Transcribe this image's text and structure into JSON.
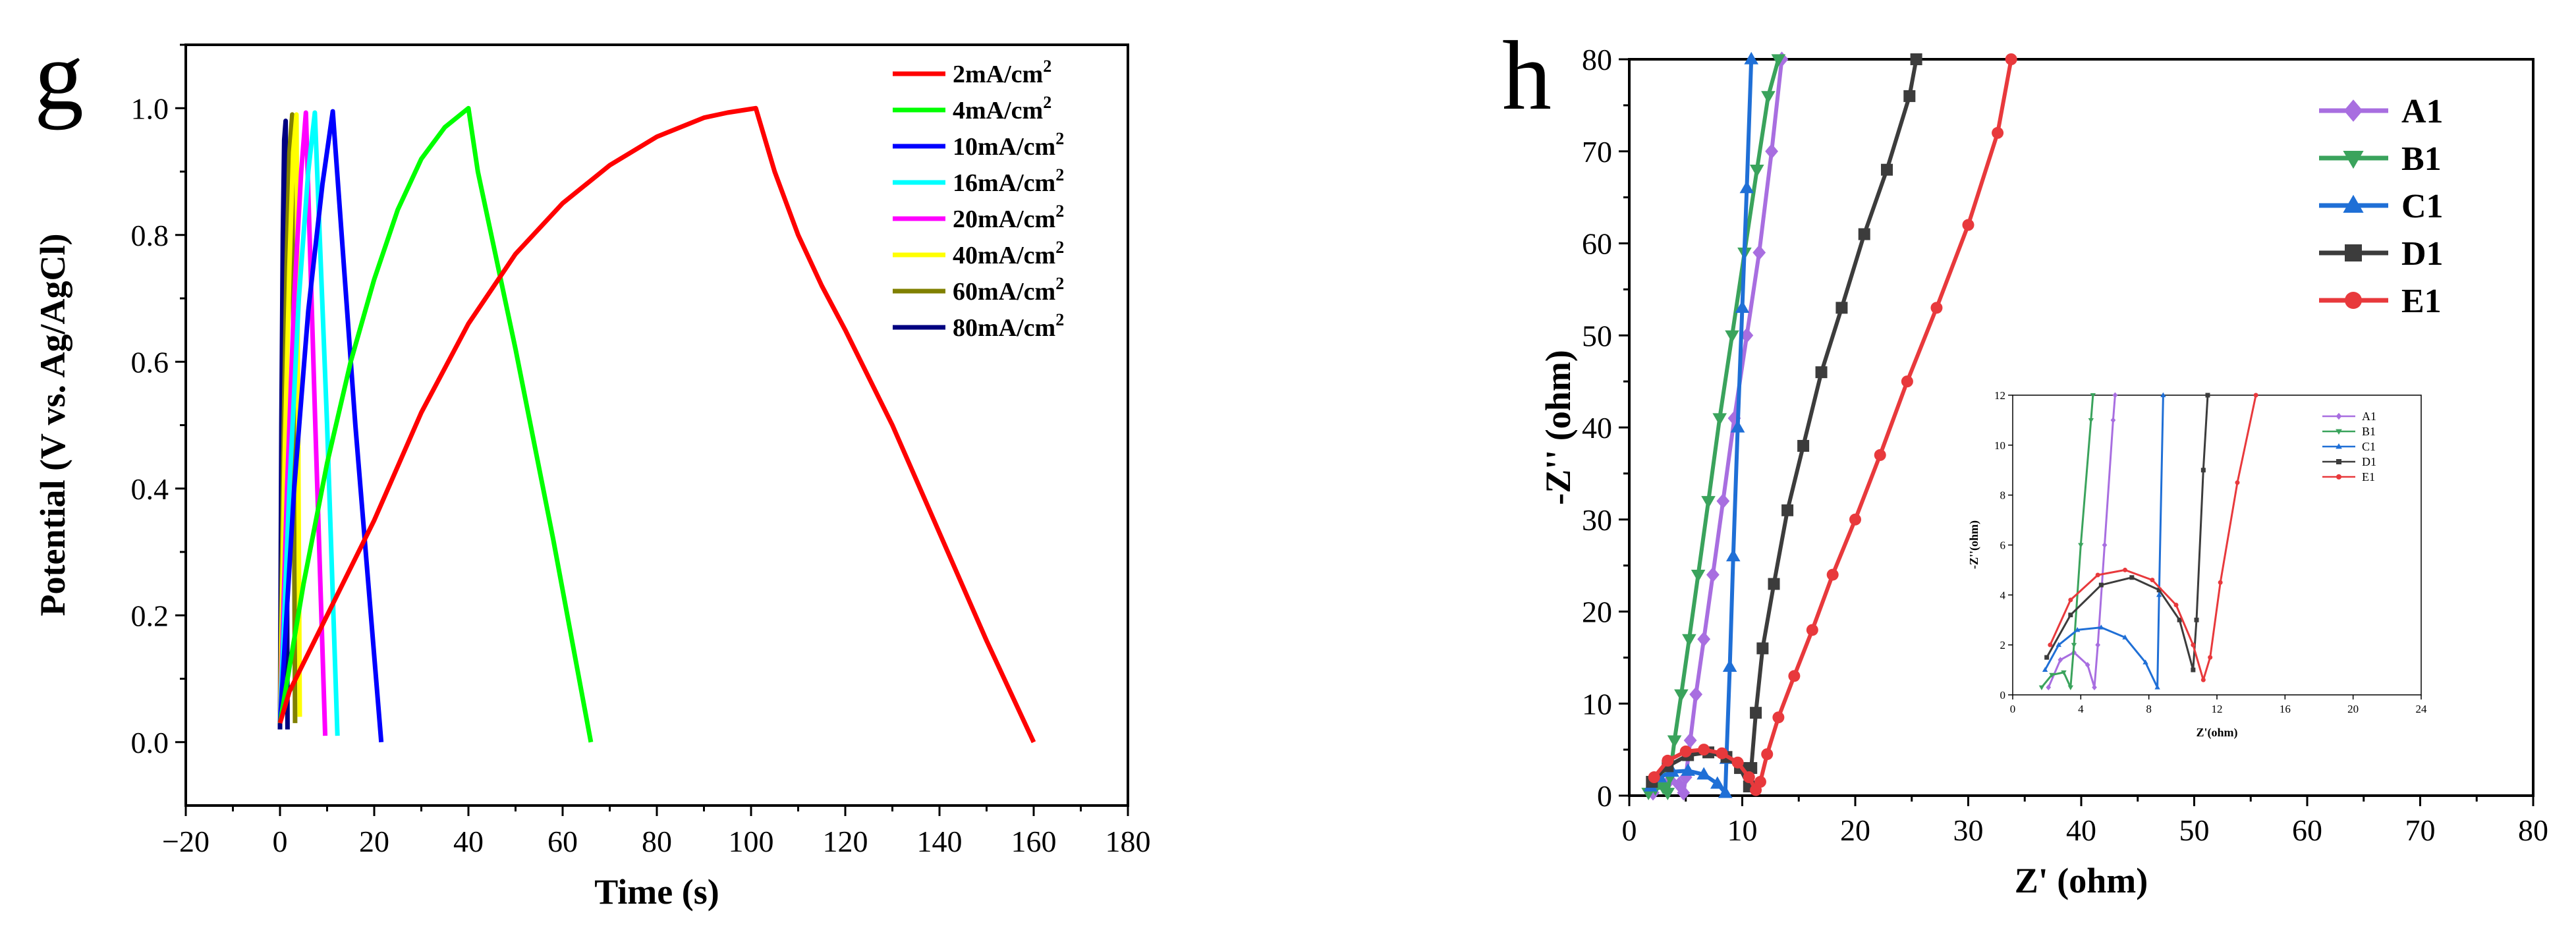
{
  "chart_data": [
    {
      "type": "line",
      "panel_label": "g",
      "xlabel": "Time (s)",
      "ylabel": "Potential (V vs. Ag/AgCl)",
      "xlim": [
        -20,
        180
      ],
      "ylim": [
        -0.1,
        1.1
      ],
      "xticks": [
        -20,
        0,
        20,
        40,
        60,
        80,
        100,
        120,
        140,
        160,
        180
      ],
      "xtick_labels": [
        "−20",
        "0",
        "20",
        "40",
        "60",
        "80",
        "100",
        "120",
        "140",
        "160",
        "180"
      ],
      "yticks": [
        0.0,
        0.2,
        0.4,
        0.6,
        0.8,
        1.0
      ],
      "ytick_labels": [
        "0.0",
        "0.2",
        "0.4",
        "0.6",
        "0.8",
        "1.0"
      ],
      "legend_position": "top-right",
      "series": [
        {
          "name": "2mA/cm",
          "sup": "2",
          "color": "#ff0000",
          "x": [
            0,
            2,
            10,
            20,
            30,
            40,
            50,
            60,
            70,
            80,
            90,
            95,
            101,
            105,
            110,
            115,
            120,
            130,
            140,
            150,
            160
          ],
          "y": [
            0.03,
            0.08,
            0.2,
            0.35,
            0.52,
            0.66,
            0.77,
            0.85,
            0.91,
            0.955,
            0.985,
            0.993,
            1.0,
            0.9,
            0.8,
            0.72,
            0.65,
            0.5,
            0.33,
            0.16,
            0.0
          ]
        },
        {
          "name": "4mA/cm",
          "sup": "2",
          "color": "#00ff00",
          "x": [
            0,
            5,
            10,
            15,
            20,
            25,
            30,
            35,
            40,
            42,
            50,
            58,
            66
          ],
          "y": [
            0.03,
            0.25,
            0.44,
            0.6,
            0.73,
            0.84,
            0.92,
            0.97,
            1.0,
            0.9,
            0.62,
            0.32,
            0.0
          ]
        },
        {
          "name": "10mA/cm",
          "sup": "2",
          "color": "#0000ff",
          "x": [
            0,
            3,
            6,
            9,
            11.2,
            16,
            21.5
          ],
          "y": [
            0.03,
            0.4,
            0.68,
            0.88,
            0.995,
            0.5,
            0.0
          ]
        },
        {
          "name": "16mA/cm",
          "sup": "2",
          "color": "#00ffff",
          "x": [
            0,
            2,
            4,
            6,
            7.4,
            10,
            12.2
          ],
          "y": [
            0.03,
            0.4,
            0.7,
            0.9,
            0.993,
            0.5,
            0.01
          ]
        },
        {
          "name": "20mA/cm",
          "sup": "2",
          "color": "#ff00ff",
          "x": [
            0,
            1.5,
            3,
            4.5,
            5.5,
            7.5,
            9.6
          ],
          "y": [
            0.03,
            0.4,
            0.7,
            0.9,
            0.993,
            0.5,
            0.01
          ]
        },
        {
          "name": "40mA/cm",
          "sup": "2",
          "color": "#ffff00",
          "x": [
            0,
            1,
            2,
            2.8,
            3.5,
            4.2
          ],
          "y": [
            0.03,
            0.45,
            0.75,
            0.93,
            0.99,
            0.04
          ]
        },
        {
          "name": "60mA/cm",
          "sup": "2",
          "color": "#808000",
          "x": [
            0,
            0.7,
            1.4,
            2.0,
            2.6,
            3.2
          ],
          "y": [
            0.03,
            0.45,
            0.75,
            0.93,
            0.99,
            0.03
          ]
        },
        {
          "name": "80mA/cm",
          "sup": "2",
          "color": "#000080",
          "x": [
            0,
            0.3,
            0.6,
            0.9,
            1.2,
            1.6
          ],
          "y": [
            0.02,
            0.5,
            0.8,
            0.95,
            0.98,
            0.02
          ]
        }
      ]
    },
    {
      "type": "scatter",
      "panel_label": "h",
      "xlabel": "Z' (ohm)",
      "ylabel": "-Z'' (ohm)",
      "xlim": [
        0,
        80
      ],
      "ylim": [
        0,
        80
      ],
      "xticks": [
        0,
        10,
        20,
        30,
        40,
        50,
        60,
        70,
        80
      ],
      "xtick_labels": [
        "0",
        "10",
        "20",
        "30",
        "40",
        "50",
        "60",
        "70",
        "80"
      ],
      "yticks": [
        0,
        10,
        20,
        30,
        40,
        50,
        60,
        70,
        80
      ],
      "ytick_labels": [
        "0",
        "10",
        "20",
        "30",
        "40",
        "50",
        "60",
        "70",
        "80"
      ],
      "legend_position": "top-right",
      "series": [
        {
          "name": "A1",
          "color": "#a86ee0",
          "marker": "diamond",
          "x": [
            2.1,
            2.8,
            3.6,
            4.4,
            4.8,
            5.0,
            5.4,
            5.9,
            6.6,
            7.4,
            8.3,
            9.3,
            10.4,
            11.5,
            12.6,
            13.5
          ],
          "y": [
            0.3,
            1.4,
            1.7,
            1.2,
            0.3,
            2.0,
            6.0,
            11.0,
            17.0,
            24.0,
            32.0,
            41.0,
            50.0,
            59.0,
            70.0,
            80.0
          ]
        },
        {
          "name": "B1",
          "color": "#3aa35c",
          "marker": "triangle-down",
          "x": [
            1.7,
            2.3,
            3.0,
            3.4,
            3.6,
            4.0,
            4.6,
            5.3,
            6.1,
            7.0,
            8.0,
            9.1,
            10.2,
            11.3,
            12.3,
            13.2
          ],
          "y": [
            0.3,
            0.8,
            0.9,
            0.3,
            2.0,
            6.0,
            11.0,
            17.0,
            24.0,
            32.0,
            41.0,
            50.0,
            59.0,
            68.0,
            76.0,
            80.0
          ]
        },
        {
          "name": "C1",
          "color": "#1f6fd6",
          "marker": "triangle-up",
          "x": [
            1.9,
            2.7,
            3.8,
            5.2,
            6.6,
            7.8,
            8.5,
            8.6,
            8.9,
            9.2,
            9.6,
            10.0,
            10.4,
            10.8
          ],
          "y": [
            1.0,
            2.0,
            2.6,
            2.7,
            2.3,
            1.3,
            0.3,
            4.0,
            14.0,
            26.0,
            40.0,
            53.0,
            66.0,
            80.0
          ]
        },
        {
          "name": "D1",
          "color": "#3c3c3c",
          "marker": "square",
          "x": [
            2.0,
            3.4,
            5.2,
            7.0,
            8.6,
            9.8,
            10.6,
            10.8,
            11.2,
            11.8,
            12.8,
            14.0,
            15.4,
            17.0,
            18.8,
            20.8,
            22.8,
            24.8,
            25.4
          ],
          "y": [
            1.5,
            3.2,
            4.4,
            4.7,
            4.2,
            3.0,
            1.0,
            3.0,
            9.0,
            16.0,
            23.0,
            31.0,
            38.0,
            46.0,
            53.0,
            61.0,
            68.0,
            76.0,
            80.0
          ]
        },
        {
          "name": "E1",
          "color": "#e8393c",
          "marker": "circle",
          "x": [
            2.2,
            3.4,
            5.0,
            6.6,
            8.2,
            9.6,
            10.6,
            11.2,
            11.6,
            12.2,
            13.2,
            14.6,
            16.2,
            18.0,
            20.0,
            22.2,
            24.6,
            27.2,
            30.0,
            32.6,
            33.8
          ],
          "y": [
            2.0,
            3.8,
            4.8,
            5.0,
            4.6,
            3.6,
            2.0,
            0.6,
            1.5,
            4.5,
            8.5,
            13.0,
            18.0,
            24.0,
            30.0,
            37.0,
            45.0,
            53.0,
            62.0,
            72.0,
            80.0
          ]
        }
      ],
      "inset": {
        "xlabel": "Z'(ohm)",
        "ylabel": "-Z''(ohm)",
        "xlim": [
          0,
          24
        ],
        "ylim": [
          0,
          12
        ],
        "xticks": [
          0,
          4,
          8,
          12,
          16,
          20,
          24
        ],
        "xtick_labels": [
          "0",
          "4",
          "8",
          "12",
          "16",
          "20",
          "24"
        ],
        "yticks": [
          0,
          2,
          4,
          6,
          8,
          10,
          12
        ],
        "ytick_labels": [
          "0",
          "2",
          "4",
          "6",
          "8",
          "10",
          "12"
        ],
        "legend_position": "top-right"
      }
    }
  ]
}
